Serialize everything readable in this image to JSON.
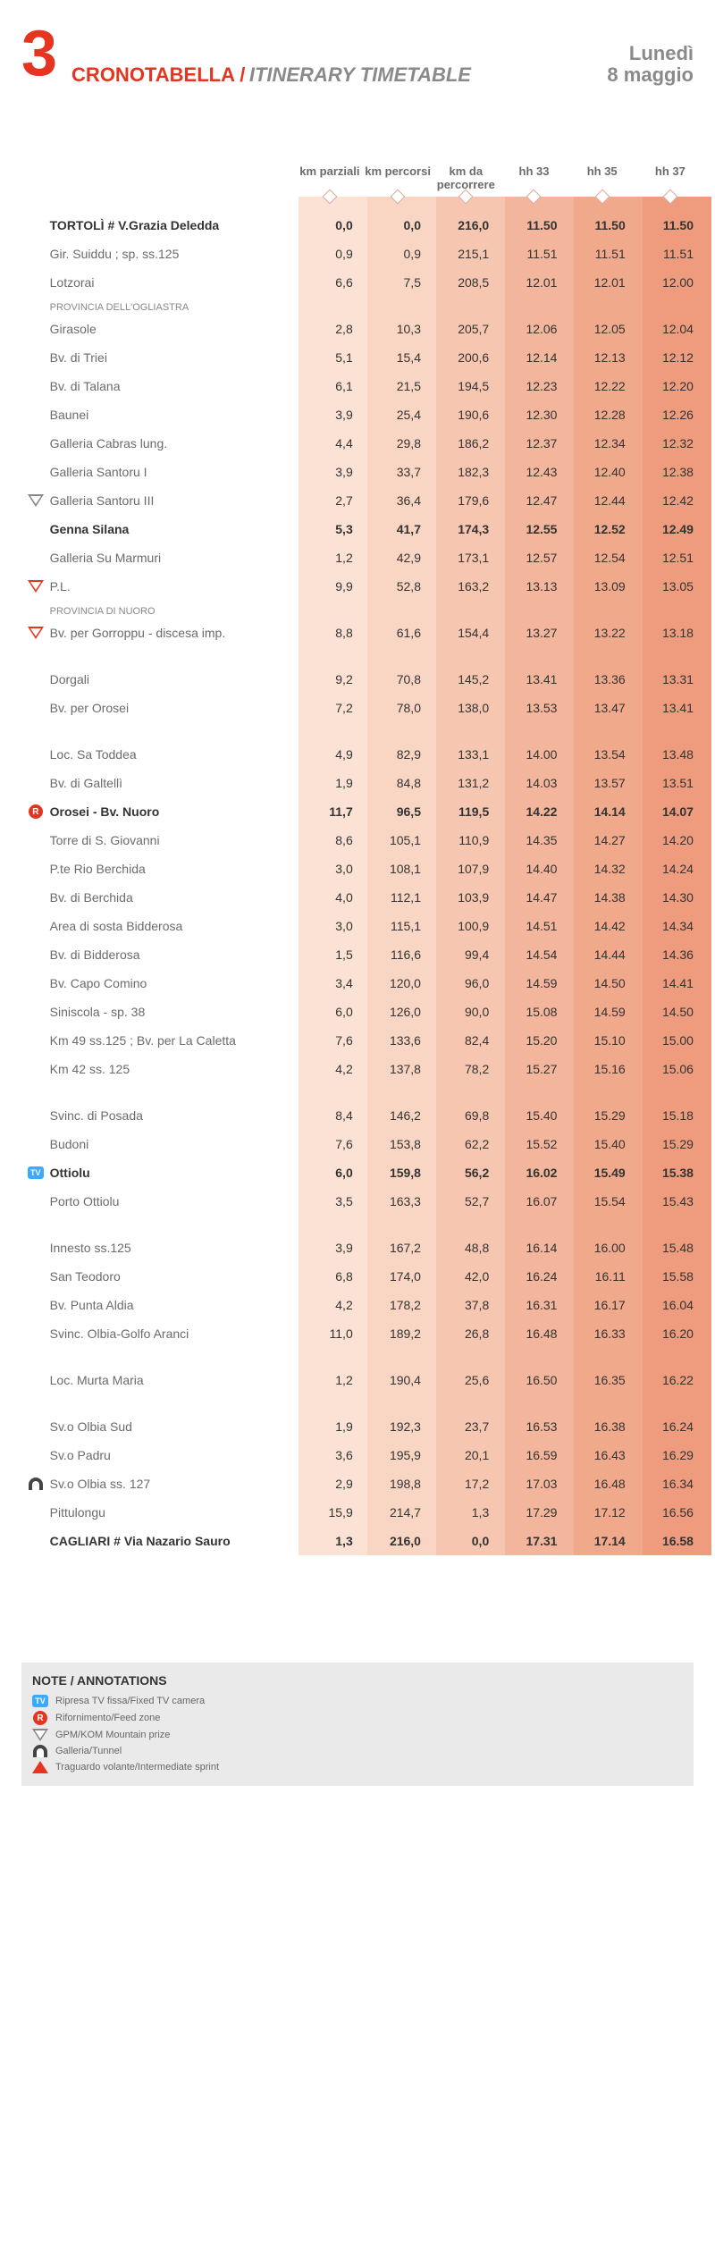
{
  "header": {
    "stage_num": "3",
    "title_line1": "CRONOTABELLA /",
    "title_line2": "",
    "subtitle": "ITINERARY TIMETABLE",
    "date_weekday": "Lunedì",
    "date_day": "8 maggio"
  },
  "columns": {
    "bg_colors": [
      "#fbe2d4",
      "#f9d5c3",
      "#f6c6b0",
      "#f3b59b",
      "#f1a98c",
      "#ee9c7d"
    ],
    "headers": [
      "km parziali",
      "km percorsi",
      "km da percorrere",
      "hh 33",
      "hh 35",
      "hh 37"
    ]
  },
  "rows": [
    {
      "bold": true,
      "icon": null,
      "label": "TORTOLÌ # V.Grazia Deledda",
      "sub": null,
      "v": [
        "0,0",
        "0,0",
        "216,0",
        "11.50",
        "11.50",
        "11.50"
      ]
    },
    {
      "icon": null,
      "label": "Gir. Suiddu ; sp. ss.125",
      "sub": null,
      "v": [
        "0,9",
        "0,9",
        "215,1",
        "11.51",
        "11.51",
        "11.51"
      ]
    },
    {
      "icon": null,
      "label": "Lotzorai",
      "sub": null,
      "v": [
        "6,6",
        "7,5",
        "208,5",
        "12.01",
        "12.01",
        "12.00"
      ]
    },
    {
      "icon": null,
      "label": "PROVINCIA DELL'OGLIASTRA",
      "sub": "subheader",
      "v": [
        "",
        "",
        "",
        "",
        "",
        ""
      ]
    },
    {
      "icon": null,
      "label": "Girasole",
      "sub": null,
      "v": [
        "2,8",
        "10,3",
        "205,7",
        "12.06",
        "12.05",
        "12.04"
      ]
    },
    {
      "icon": null,
      "label": "Bv. di Triei",
      "sub": null,
      "v": [
        "5,1",
        "15,4",
        "200,6",
        "12.14",
        "12.13",
        "12.12"
      ]
    },
    {
      "icon": null,
      "label": "Bv. di Talana",
      "sub": null,
      "v": [
        "6,1",
        "21,5",
        "194,5",
        "12.23",
        "12.22",
        "12.20"
      ]
    },
    {
      "icon": null,
      "label": "Baunei",
      "sub": null,
      "v": [
        "3,9",
        "25,4",
        "190,6",
        "12.30",
        "12.28",
        "12.26"
      ]
    },
    {
      "icon": null,
      "label": "Galleria Cabras lung.",
      "sub": null,
      "v": [
        "4,4",
        "29,8",
        "186,2",
        "12.37",
        "12.34",
        "12.32"
      ]
    },
    {
      "icon": null,
      "label": "Galleria Santoru I",
      "sub": null,
      "v": [
        "3,9",
        "33,7",
        "182,3",
        "12.43",
        "12.40",
        "12.38"
      ]
    },
    {
      "icon": "tri",
      "label": "Galleria Santoru III",
      "sub": null,
      "v": [
        "2,7",
        "36,4",
        "179,6",
        "12.47",
        "12.44",
        "12.42"
      ]
    },
    {
      "bold": true,
      "icon": null,
      "label": "Genna Silana",
      "sub": null,
      "v": [
        "5,3",
        "41,7",
        "174,3",
        "12.55",
        "12.52",
        "12.49"
      ]
    },
    {
      "icon": null,
      "label": "Galleria Su Marmuri",
      "sub": null,
      "v": [
        "1,2",
        "42,9",
        "173,1",
        "12.57",
        "12.54",
        "12.51"
      ]
    },
    {
      "icon": "tri-red",
      "label": "P.L.",
      "sub": null,
      "v": [
        "9,9",
        "52,8",
        "163,2",
        "13.13",
        "13.09",
        "13.05"
      ]
    },
    {
      "icon": null,
      "label": "PROVINCIA DI NUORO",
      "sub": "subheader",
      "v": [
        "",
        "",
        "",
        "",
        "",
        ""
      ]
    },
    {
      "icon": "tri-red",
      "label": "Bv. per Gorroppu - discesa imp.",
      "sub": null,
      "v": [
        "8,8",
        "61,6",
        "154,4",
        "13.27",
        "13.22",
        "13.18"
      ]
    },
    {
      "icon": null,
      "label": "",
      "sub": "subheader",
      "v": [
        "",
        "",
        "",
        "",
        "",
        ""
      ]
    },
    {
      "icon": null,
      "label": "Dorgali",
      "sub": null,
      "v": [
        "9,2",
        "70,8",
        "145,2",
        "13.41",
        "13.36",
        "13.31"
      ]
    },
    {
      "icon": null,
      "label": "Bv. per Orosei",
      "sub": null,
      "v": [
        "7,2",
        "78,0",
        "138,0",
        "13.53",
        "13.47",
        "13.41"
      ]
    },
    {
      "icon": null,
      "label": "",
      "sub": "subheader",
      "v": [
        "",
        "",
        "",
        "",
        "",
        ""
      ]
    },
    {
      "icon": null,
      "label": "Loc. Sa Toddea",
      "sub": null,
      "v": [
        "4,9",
        "82,9",
        "133,1",
        "14.00",
        "13.54",
        "13.48"
      ]
    },
    {
      "icon": null,
      "label": "Bv. di Galtellì",
      "sub": null,
      "v": [
        "1,9",
        "84,8",
        "131,2",
        "14.03",
        "13.57",
        "13.51"
      ]
    },
    {
      "bold": true,
      "icon": "r",
      "label": "Orosei - Bv. Nuoro",
      "sub": null,
      "v": [
        "11,7",
        "96,5",
        "119,5",
        "14.22",
        "14.14",
        "14.07"
      ]
    },
    {
      "icon": null,
      "label": "Torre di S. Giovanni",
      "sub": null,
      "v": [
        "8,6",
        "105,1",
        "110,9",
        "14.35",
        "14.27",
        "14.20"
      ]
    },
    {
      "icon": null,
      "label": "P.te Rio Berchida",
      "sub": null,
      "v": [
        "3,0",
        "108,1",
        "107,9",
        "14.40",
        "14.32",
        "14.24"
      ]
    },
    {
      "icon": null,
      "label": "Bv. di Berchida",
      "sub": null,
      "v": [
        "4,0",
        "112,1",
        "103,9",
        "14.47",
        "14.38",
        "14.30"
      ]
    },
    {
      "icon": null,
      "label": "Area di sosta Bidderosa",
      "sub": null,
      "v": [
        "3,0",
        "115,1",
        "100,9",
        "14.51",
        "14.42",
        "14.34"
      ]
    },
    {
      "icon": null,
      "label": "Bv. di Bidderosa",
      "sub": null,
      "v": [
        "1,5",
        "116,6",
        "99,4",
        "14.54",
        "14.44",
        "14.36"
      ]
    },
    {
      "icon": null,
      "label": "Bv. Capo Comino",
      "sub": null,
      "v": [
        "3,4",
        "120,0",
        "96,0",
        "14.59",
        "14.50",
        "14.41"
      ]
    },
    {
      "icon": null,
      "label": "Siniscola - sp. 38",
      "sub": null,
      "v": [
        "6,0",
        "126,0",
        "90,0",
        "15.08",
        "14.59",
        "14.50"
      ]
    },
    {
      "icon": null,
      "label": "Km 49 ss.125 ; Bv. per La Caletta",
      "sub": null,
      "v": [
        "7,6",
        "133,6",
        "82,4",
        "15.20",
        "15.10",
        "15.00"
      ]
    },
    {
      "icon": null,
      "label": "Km 42 ss. 125",
      "sub": null,
      "v": [
        "4,2",
        "137,8",
        "78,2",
        "15.27",
        "15.16",
        "15.06"
      ]
    },
    {
      "icon": null,
      "label": "",
      "sub": "subheader",
      "v": [
        "",
        "",
        "",
        "",
        "",
        ""
      ]
    },
    {
      "icon": null,
      "label": "Svinc. di Posada",
      "sub": null,
      "v": [
        "8,4",
        "146,2",
        "69,8",
        "15.40",
        "15.29",
        "15.18"
      ]
    },
    {
      "icon": null,
      "label": "Budoni",
      "sub": null,
      "v": [
        "7,6",
        "153,8",
        "62,2",
        "15.52",
        "15.40",
        "15.29"
      ]
    },
    {
      "bold": true,
      "icon": "tv",
      "label": "Ottiolu",
      "sub": null,
      "v": [
        "6,0",
        "159,8",
        "56,2",
        "16.02",
        "15.49",
        "15.38"
      ]
    },
    {
      "icon": null,
      "label": "Porto Ottiolu",
      "sub": null,
      "v": [
        "3,5",
        "163,3",
        "52,7",
        "16.07",
        "15.54",
        "15.43"
      ]
    },
    {
      "icon": null,
      "label": "",
      "sub": "subheader",
      "v": [
        "",
        "",
        "",
        "",
        "",
        ""
      ]
    },
    {
      "icon": null,
      "label": "Innesto ss.125",
      "sub": null,
      "v": [
        "3,9",
        "167,2",
        "48,8",
        "16.14",
        "16.00",
        "15.48"
      ]
    },
    {
      "icon": null,
      "label": "San Teodoro",
      "sub": null,
      "v": [
        "6,8",
        "174,0",
        "42,0",
        "16.24",
        "16.11",
        "15.58"
      ]
    },
    {
      "icon": null,
      "label": "Bv. Punta Aldia",
      "sub": null,
      "v": [
        "4,2",
        "178,2",
        "37,8",
        "16.31",
        "16.17",
        "16.04"
      ]
    },
    {
      "icon": null,
      "label": "Svinc. Olbia-Golfo Aranci",
      "sub": null,
      "v": [
        "11,0",
        "189,2",
        "26,8",
        "16.48",
        "16.33",
        "16.20"
      ]
    },
    {
      "icon": null,
      "label": "",
      "sub": "subheader",
      "v": [
        "",
        "",
        "",
        "",
        "",
        ""
      ]
    },
    {
      "icon": null,
      "label": "Loc. Murta Maria",
      "sub": null,
      "v": [
        "1,2",
        "190,4",
        "25,6",
        "16.50",
        "16.35",
        "16.22"
      ]
    },
    {
      "icon": null,
      "label": "",
      "sub": "subheader",
      "v": [
        "",
        "",
        "",
        "",
        "",
        ""
      ]
    },
    {
      "icon": null,
      "label": "Sv.o Olbia Sud",
      "sub": null,
      "v": [
        "1,9",
        "192,3",
        "23,7",
        "16.53",
        "16.38",
        "16.24"
      ]
    },
    {
      "icon": null,
      "label": "Sv.o Padru",
      "sub": null,
      "v": [
        "3,6",
        "195,9",
        "20,1",
        "16.59",
        "16.43",
        "16.29"
      ]
    },
    {
      "icon": "tunnel",
      "label": "Sv.o Olbia ss. 127",
      "sub": null,
      "v": [
        "2,9",
        "198,8",
        "17,2",
        "17.03",
        "16.48",
        "16.34"
      ]
    },
    {
      "icon": null,
      "label": "Pittulongu",
      "sub": null,
      "v": [
        "15,9",
        "214,7",
        "1,3",
        "17.29",
        "17.12",
        "16.56"
      ]
    },
    {
      "bold": true,
      "icon": null,
      "label": "CAGLIARI # Via Nazario Sauro",
      "sub": null,
      "v": [
        "1,3",
        "216,0",
        "0,0",
        "17.31",
        "17.14",
        "16.58"
      ]
    }
  ],
  "legend": {
    "title": "NOTE / ANNOTATIONS",
    "items": [
      {
        "icon": "tv",
        "text": "Ripresa TV fissa/Fixed TV camera"
      },
      {
        "icon": "r",
        "text": "Rifornimento/Feed zone"
      },
      {
        "icon": "tri",
        "text": "GPM/KOM Mountain prize"
      },
      {
        "icon": "tunnel",
        "text": "Galleria/Tunnel"
      },
      {
        "icon": "warn",
        "text": "Traguardo volante/Intermediate sprint"
      }
    ]
  }
}
